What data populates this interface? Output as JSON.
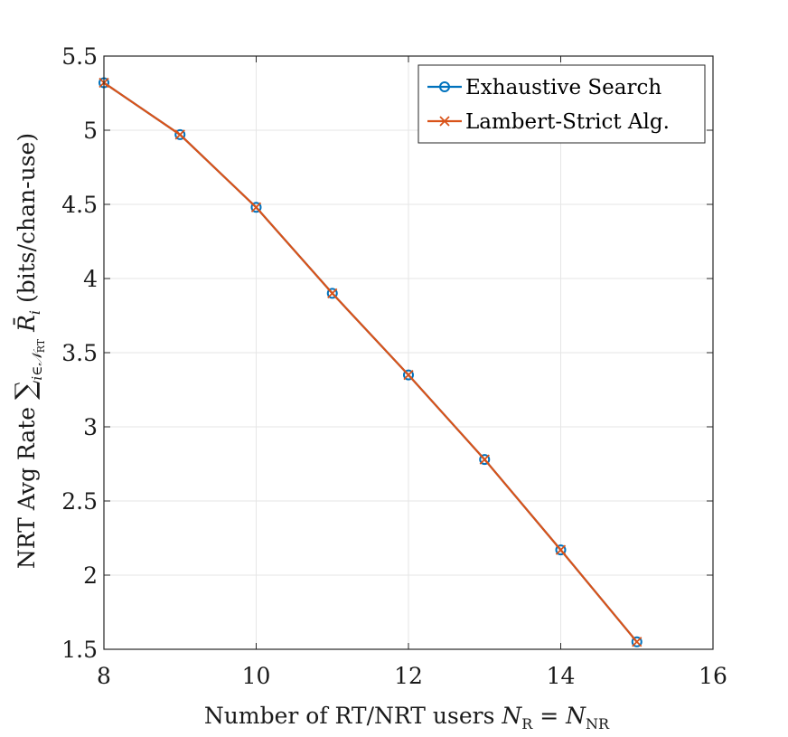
{
  "chart_data": {
    "type": "line",
    "xlabel": "Number of RT/NRT users N_R = N_NR",
    "ylabel": "NRT Avg Rate Σ_{i∈N_RT} R̄_i (bits/chan-use)",
    "xlim": [
      8,
      16
    ],
    "ylim": [
      1.5,
      5.5
    ],
    "x_ticks": [
      8,
      10,
      12,
      14,
      16
    ],
    "y_ticks": [
      1.5,
      2,
      2.5,
      3,
      3.5,
      4,
      4.5,
      5,
      5.5
    ],
    "x_tick_labels": [
      "8",
      "10",
      "12",
      "14",
      "16"
    ],
    "y_tick_labels": [
      "1.5",
      "2",
      "2.5",
      "3",
      "3.5",
      "4",
      "4.5",
      "5",
      "5.5"
    ],
    "grid": true,
    "legend_position": "top-right",
    "x": [
      8,
      9,
      10,
      11,
      12,
      13,
      14,
      15
    ],
    "series": [
      {
        "name": "Exhaustive Search",
        "color": "#0072BD",
        "marker": "circle",
        "values": [
          5.32,
          4.97,
          4.48,
          3.9,
          3.35,
          2.78,
          2.17,
          1.55
        ]
      },
      {
        "name": "Lambert-Strict Alg.",
        "color": "#D95319",
        "marker": "x",
        "values": [
          5.32,
          4.97,
          4.48,
          3.9,
          3.35,
          2.78,
          2.17,
          1.55
        ]
      }
    ]
  }
}
